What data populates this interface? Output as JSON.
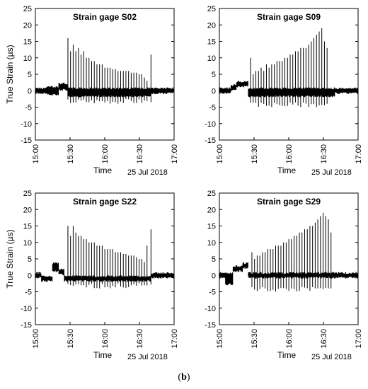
{
  "caption": {
    "open": "(",
    "letter": "b",
    "close": ")"
  },
  "chart_data": [
    {
      "type": "line",
      "title": "Strain gage S02",
      "ylabel": "True Strain (µs)",
      "xlabel": "Time",
      "date_label": "25 Jul 2018",
      "ylim": [
        -15,
        25
      ],
      "yticks": [
        -15,
        -10,
        -5,
        0,
        5,
        10,
        15,
        20,
        25
      ],
      "xlim": [
        "15:00",
        "17:00"
      ],
      "xticks": [
        "15:00",
        "15:30",
        "16:00",
        "16:30",
        "17:00"
      ],
      "grid": false,
      "series": [
        {
          "baseline": [
            [
              "15:00",
              -1,
              1
            ],
            [
              "15:10",
              -1.5,
              1.5
            ],
            [
              "15:20",
              0,
              2.5
            ],
            [
              "15:28",
              -2,
              1
            ],
            [
              "16:40",
              -1,
              1
            ],
            [
              "17:00",
              -1,
              1
            ]
          ],
          "spikes": [
            [
              15.5,
              16
            ],
            [
              15.7,
              12
            ],
            [
              15.9,
              14
            ],
            [
              16.1,
              12
            ],
            [
              16.3,
              13
            ],
            [
              16.5,
              11
            ],
            [
              16.7,
              12
            ],
            [
              16.9,
              10
            ],
            [
              17.1,
              10
            ],
            [
              17.3,
              9
            ],
            [
              17.5,
              9
            ],
            [
              17.7,
              8
            ],
            [
              17.9,
              8
            ],
            [
              18.1,
              8
            ],
            [
              18.3,
              7
            ],
            [
              18.5,
              7
            ],
            [
              18.7,
              7
            ],
            [
              18.9,
              6.5
            ],
            [
              19.1,
              6.5
            ],
            [
              19.3,
              6
            ],
            [
              19.5,
              6
            ],
            [
              19.7,
              6
            ],
            [
              19.9,
              6
            ],
            [
              20.1,
              6
            ],
            [
              20.3,
              5.5
            ],
            [
              20.5,
              5.5
            ],
            [
              20.7,
              5.5
            ],
            [
              20.9,
              5
            ],
            [
              21.1,
              5
            ],
            [
              21.3,
              4
            ],
            [
              21.5,
              3
            ],
            [
              21.8,
              11
            ]
          ],
          "dips": -4
        }
      ]
    },
    {
      "type": "line",
      "title": "Strain gage S09",
      "ylabel": "",
      "xlabel": "Time",
      "date_label": "25 Jul 2018",
      "ylim": [
        -15,
        25
      ],
      "yticks": [
        -15,
        -10,
        -5,
        0,
        5,
        10,
        15,
        20,
        25
      ],
      "xlim": [
        "15:00",
        "17:00"
      ],
      "xticks": [
        "15:00",
        "15:30",
        "16:00",
        "16:30",
        "17:00"
      ],
      "grid": false,
      "series": [
        {
          "baseline": [
            [
              "15:00",
              -1,
              1
            ],
            [
              "15:10",
              0,
              2
            ],
            [
              "15:15",
              1,
              3
            ],
            [
              "15:25",
              -2,
              1
            ],
            [
              "16:40",
              -1,
              1
            ],
            [
              "17:00",
              -1,
              1
            ]
          ],
          "spikes": [
            [
              15.4,
              10
            ],
            [
              15.6,
              5
            ],
            [
              15.8,
              6
            ],
            [
              16.0,
              6
            ],
            [
              16.2,
              7
            ],
            [
              16.4,
              6
            ],
            [
              16.6,
              8
            ],
            [
              16.8,
              7
            ],
            [
              17.0,
              8
            ],
            [
              17.2,
              8
            ],
            [
              17.4,
              9
            ],
            [
              17.6,
              9
            ],
            [
              17.8,
              9
            ],
            [
              18.0,
              10
            ],
            [
              18.2,
              10
            ],
            [
              18.4,
              11
            ],
            [
              18.6,
              11
            ],
            [
              18.8,
              12
            ],
            [
              19.0,
              12
            ],
            [
              19.2,
              13
            ],
            [
              19.4,
              13
            ],
            [
              19.6,
              13
            ],
            [
              19.8,
              14
            ],
            [
              20.0,
              15
            ],
            [
              20.2,
              16
            ],
            [
              20.4,
              17
            ],
            [
              20.6,
              18
            ],
            [
              20.8,
              19
            ],
            [
              21.0,
              15
            ],
            [
              21.2,
              13
            ]
          ],
          "dips": -5
        }
      ]
    },
    {
      "type": "line",
      "title": "Strain gage S22",
      "ylabel": "True Strain (µs)",
      "xlabel": "Time",
      "date_label": "25 Jul 2018",
      "ylim": [
        -15,
        25
      ],
      "yticks": [
        -15,
        -10,
        -5,
        0,
        5,
        10,
        15,
        20,
        25
      ],
      "xlim": [
        "15:00",
        "17:00"
      ],
      "xticks": [
        "15:00",
        "15:30",
        "16:00",
        "16:30",
        "17:00"
      ],
      "grid": false,
      "series": [
        {
          "baseline": [
            [
              "15:00",
              -1,
              1
            ],
            [
              "15:05",
              -2,
              0
            ],
            [
              "15:15",
              1,
              4
            ],
            [
              "15:20",
              0,
              2
            ],
            [
              "15:25",
              -2,
              0
            ],
            [
              "16:40",
              -1,
              1
            ],
            [
              "17:00",
              -1,
              1
            ]
          ],
          "spikes": [
            [
              15.5,
              15
            ],
            [
              15.7,
              12
            ],
            [
              15.9,
              15
            ],
            [
              16.1,
              13
            ],
            [
              16.3,
              12
            ],
            [
              16.5,
              12
            ],
            [
              16.7,
              11
            ],
            [
              16.9,
              11
            ],
            [
              17.1,
              10
            ],
            [
              17.3,
              10
            ],
            [
              17.5,
              10
            ],
            [
              17.7,
              9
            ],
            [
              17.9,
              9
            ],
            [
              18.1,
              9
            ],
            [
              18.3,
              8
            ],
            [
              18.5,
              8
            ],
            [
              18.7,
              8
            ],
            [
              18.9,
              8
            ],
            [
              19.1,
              7
            ],
            [
              19.3,
              7
            ],
            [
              19.5,
              7
            ],
            [
              19.7,
              6.5
            ],
            [
              19.9,
              6.5
            ],
            [
              20.1,
              6
            ],
            [
              20.3,
              6
            ],
            [
              20.5,
              6
            ],
            [
              20.7,
              5.5
            ],
            [
              20.9,
              5
            ],
            [
              21.1,
              5
            ],
            [
              21.3,
              4
            ],
            [
              21.5,
              9
            ],
            [
              21.8,
              14
            ]
          ],
          "dips": -4
        }
      ]
    },
    {
      "type": "line",
      "title": "Strain gage S29",
      "ylabel": "",
      "xlabel": "Time",
      "date_label": "25 Jul 2018",
      "ylim": [
        -15,
        25
      ],
      "yticks": [
        -15,
        -10,
        -5,
        0,
        5,
        10,
        15,
        20,
        25
      ],
      "xlim": [
        "15:00",
        "17:00"
      ],
      "xticks": [
        "15:00",
        "15:30",
        "16:00",
        "16:30",
        "17:00"
      ],
      "grid": false,
      "series": [
        {
          "baseline": [
            [
              "15:00",
              -1,
              1
            ],
            [
              "15:05",
              -3,
              1
            ],
            [
              "15:12",
              1,
              3
            ],
            [
              "15:20",
              2,
              4
            ],
            [
              "15:25",
              -1,
              1
            ],
            [
              "16:40",
              -1,
              1
            ],
            [
              "17:00",
              -1,
              1
            ]
          ],
          "spikes": [
            [
              15.5,
              7
            ],
            [
              15.7,
              5
            ],
            [
              15.9,
              6
            ],
            [
              16.1,
              6
            ],
            [
              16.3,
              7
            ],
            [
              16.5,
              7
            ],
            [
              16.7,
              8
            ],
            [
              16.9,
              8
            ],
            [
              17.1,
              8
            ],
            [
              17.3,
              9
            ],
            [
              17.5,
              9
            ],
            [
              17.7,
              9
            ],
            [
              17.9,
              10
            ],
            [
              18.1,
              10
            ],
            [
              18.3,
              11
            ],
            [
              18.5,
              11
            ],
            [
              18.7,
              12
            ],
            [
              18.9,
              12
            ],
            [
              19.1,
              13
            ],
            [
              19.3,
              13
            ],
            [
              19.5,
              14
            ],
            [
              19.7,
              14
            ],
            [
              19.9,
              15
            ],
            [
              20.1,
              15
            ],
            [
              20.3,
              16
            ],
            [
              20.5,
              17
            ],
            [
              20.7,
              18
            ],
            [
              20.9,
              19
            ],
            [
              21.1,
              18
            ],
            [
              21.3,
              17
            ],
            [
              21.5,
              13
            ]
          ],
          "dips": -5
        }
      ]
    }
  ]
}
